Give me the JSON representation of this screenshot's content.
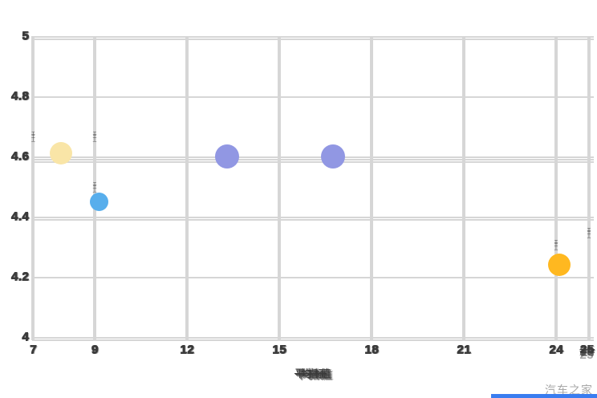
{
  "page": {
    "watermark": "汽车之家",
    "background": "#ffffff",
    "bottom_bar_color": "#3a7df0"
  },
  "chart_data": {
    "type": "scatter",
    "title": "",
    "xlabel": "平均指标值",
    "xlabel_note": "overlapping CJK characters, illegible smudge in source",
    "ylabel": "",
    "xlim": [
      7,
      25.1
    ],
    "ylim": [
      4,
      5
    ],
    "grid": true,
    "legend": "none",
    "grid_color": "#d6d6d6",
    "tick_color": "#3b3b3b",
    "x_grid_values": [
      7,
      9,
      12,
      15,
      18,
      21,
      24,
      25.07
    ],
    "x_ticks": [
      {
        "value": 7,
        "label": "7"
      },
      {
        "value": 9,
        "label": "9"
      },
      {
        "value": 12,
        "label": "12"
      },
      {
        "value": 15,
        "label": "15"
      },
      {
        "value": 18,
        "label": "18"
      },
      {
        "value": 21,
        "label": "21"
      },
      {
        "value": 24,
        "label": "24"
      },
      {
        "value": 25,
        "label": "25",
        "garbled": true
      }
    ],
    "y_ticks": [
      {
        "value": 5,
        "label": "5",
        "lines": 2
      },
      {
        "value": 4.8,
        "label": "4.8",
        "lines": 1
      },
      {
        "value": 4.6,
        "label": "4.6",
        "lines": 3
      },
      {
        "value": 4.4,
        "label": "4.4",
        "lines": 2
      },
      {
        "value": 4.2,
        "label": "4.2",
        "lines": 1
      },
      {
        "value": 4,
        "label": "4",
        "lines": 2
      }
    ],
    "points": [
      {
        "x": 7.9,
        "y": 4.61,
        "color": "#f9e5a7",
        "diameter": 28
      },
      {
        "x": 9.15,
        "y": 4.45,
        "color": "#58aeec",
        "diameter": 23
      },
      {
        "x": 13.3,
        "y": 4.6,
        "color": "#9197e3",
        "diameter": 30
      },
      {
        "x": 16.75,
        "y": 4.6,
        "color": "#9197e3",
        "diameter": 30
      },
      {
        "x": 24.1,
        "y": 4.24,
        "color": "#ffb820",
        "diameter": 28
      }
    ],
    "micro_marks": [
      {
        "x": 7,
        "y": 4.66
      },
      {
        "x": 9,
        "y": 4.66
      },
      {
        "x": 9,
        "y": 4.49
      },
      {
        "x": 24,
        "y": 4.3
      },
      {
        "x": 25.07,
        "y": 4.34
      }
    ],
    "micro_glyph": "工\n工\n丄"
  }
}
